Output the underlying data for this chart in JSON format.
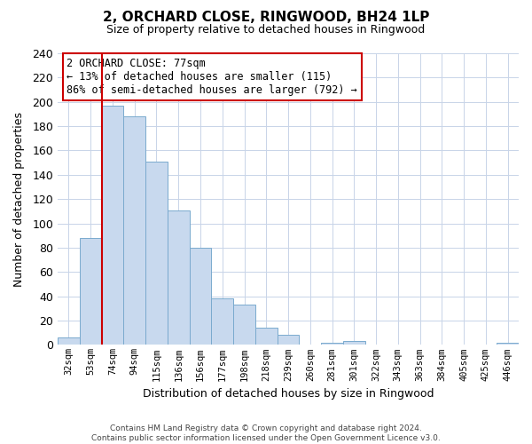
{
  "title": "2, ORCHARD CLOSE, RINGWOOD, BH24 1LP",
  "subtitle": "Size of property relative to detached houses in Ringwood",
  "xlabel": "Distribution of detached houses by size in Ringwood",
  "ylabel": "Number of detached properties",
  "categories": [
    "32sqm",
    "53sqm",
    "74sqm",
    "94sqm",
    "115sqm",
    "136sqm",
    "156sqm",
    "177sqm",
    "198sqm",
    "218sqm",
    "239sqm",
    "260sqm",
    "281sqm",
    "301sqm",
    "322sqm",
    "343sqm",
    "363sqm",
    "384sqm",
    "405sqm",
    "425sqm",
    "446sqm"
  ],
  "values": [
    6,
    88,
    197,
    188,
    151,
    111,
    80,
    38,
    33,
    14,
    8,
    0,
    2,
    3,
    0,
    0,
    0,
    0,
    0,
    0,
    2
  ],
  "bar_color": "#c8d9ee",
  "bar_edge_color": "#7aaace",
  "highlight_line_color": "#cc0000",
  "ylim": [
    0,
    240
  ],
  "yticks": [
    0,
    20,
    40,
    60,
    80,
    100,
    120,
    140,
    160,
    180,
    200,
    220,
    240
  ],
  "annotation_title": "2 ORCHARD CLOSE: 77sqm",
  "annotation_line1": "← 13% of detached houses are smaller (115)",
  "annotation_line2": "86% of semi-detached houses are larger (792) →",
  "annotation_box_color": "#ffffff",
  "annotation_box_edge": "#cc0000",
  "footer_line1": "Contains HM Land Registry data © Crown copyright and database right 2024.",
  "footer_line2": "Contains public sector information licensed under the Open Government Licence v3.0.",
  "background_color": "#ffffff",
  "grid_color": "#c8d4e8"
}
